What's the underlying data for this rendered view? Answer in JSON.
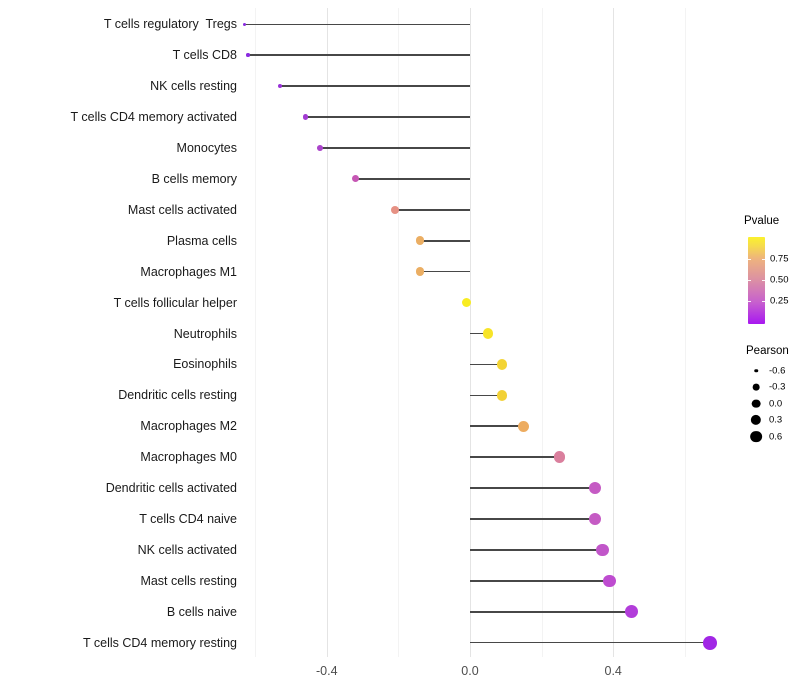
{
  "chart_data": {
    "type": "scatter",
    "subtype": "lollipop",
    "title": "",
    "xlabel": "",
    "ylabel": "",
    "grid": true,
    "xlim": [
      -0.645,
      0.685
    ],
    "x_major_ticks": [
      -0.4,
      0.0,
      0.4
    ],
    "x_major_tick_labels": [
      "-0.4",
      "0.0",
      "0.4"
    ],
    "x_minor_ticks": [
      -0.6,
      -0.2,
      0.2,
      0.6
    ],
    "stem_color": "#474747",
    "points": [
      {
        "label": "T cells regulatory  Tregs",
        "pearson": -0.63,
        "pvalue": 0.02,
        "color": "#8A2BE0"
      },
      {
        "label": "T cells CD8",
        "pearson": -0.62,
        "pvalue": 0.02,
        "color": "#8A2BE0"
      },
      {
        "label": "NK cells resting",
        "pearson": -0.53,
        "pvalue": 0.06,
        "color": "#9932D8"
      },
      {
        "label": "T cells CD4 memory activated",
        "pearson": -0.46,
        "pvalue": 0.1,
        "color": "#A23BD2"
      },
      {
        "label": "Monocytes",
        "pearson": -0.42,
        "pvalue": 0.15,
        "color": "#AB44CB"
      },
      {
        "label": "B cells memory",
        "pearson": -0.32,
        "pvalue": 0.3,
        "color": "#C657B4"
      },
      {
        "label": "Mast cells activated",
        "pearson": -0.21,
        "pvalue": 0.55,
        "color": "#E69184"
      },
      {
        "label": "Plasma cells",
        "pearson": -0.14,
        "pvalue": 0.7,
        "color": "#EBAE63"
      },
      {
        "label": "Macrophages M1",
        "pearson": -0.14,
        "pvalue": 0.7,
        "color": "#EBAE63"
      },
      {
        "label": "T cells follicular helper",
        "pearson": -0.01,
        "pvalue": 0.98,
        "color": "#F8EC21"
      },
      {
        "label": "Neutrophils",
        "pearson": 0.05,
        "pvalue": 0.93,
        "color": "#F7E428"
      },
      {
        "label": "Eosinophils",
        "pearson": 0.09,
        "pvalue": 0.85,
        "color": "#F3D434"
      },
      {
        "label": "Dendritic cells resting",
        "pearson": 0.09,
        "pvalue": 0.84,
        "color": "#F2D136"
      },
      {
        "label": "Macrophages M2",
        "pearson": 0.15,
        "pvalue": 0.7,
        "color": "#EDAC60"
      },
      {
        "label": "Macrophages M0",
        "pearson": 0.25,
        "pvalue": 0.48,
        "color": "#DA7F9D"
      },
      {
        "label": "Dendritic cells activated",
        "pearson": 0.35,
        "pvalue": 0.3,
        "color": "#C55BC4"
      },
      {
        "label": "T cells CD4 naive",
        "pearson": 0.35,
        "pvalue": 0.3,
        "color": "#C55BC4"
      },
      {
        "label": "NK cells activated",
        "pearson": 0.37,
        "pvalue": 0.27,
        "color": "#C156C9"
      },
      {
        "label": "Mast cells resting",
        "pearson": 0.39,
        "pvalue": 0.22,
        "color": "#BE4CD0"
      },
      {
        "label": "B cells naive",
        "pearson": 0.45,
        "pvalue": 0.14,
        "color": "#B23DDA"
      },
      {
        "label": "T cells CD4 memory resting",
        "pearson": 0.67,
        "pvalue": 0.03,
        "color": "#A127E5"
      }
    ],
    "legend_pvalue": {
      "title": "Pvalue",
      "ticks": [
        "0.75",
        "0.50",
        "0.25"
      ],
      "range": [
        0,
        1
      ],
      "gradient_low": "#A818F0",
      "gradient_high": "#FBF12D",
      "gradient_stops": [
        "#A818F0",
        "#C760CE",
        "#DB8FA5",
        "#EEB37E",
        "#F6DC4B",
        "#FBF12D"
      ]
    },
    "legend_pearson": {
      "title": "Pearson",
      "labels": [
        "-0.6",
        "-0.3",
        "0.0",
        "0.3",
        "0.6"
      ],
      "values": [
        -0.6,
        -0.3,
        0.0,
        0.3,
        0.6
      ],
      "dot_color": "#000000"
    }
  }
}
